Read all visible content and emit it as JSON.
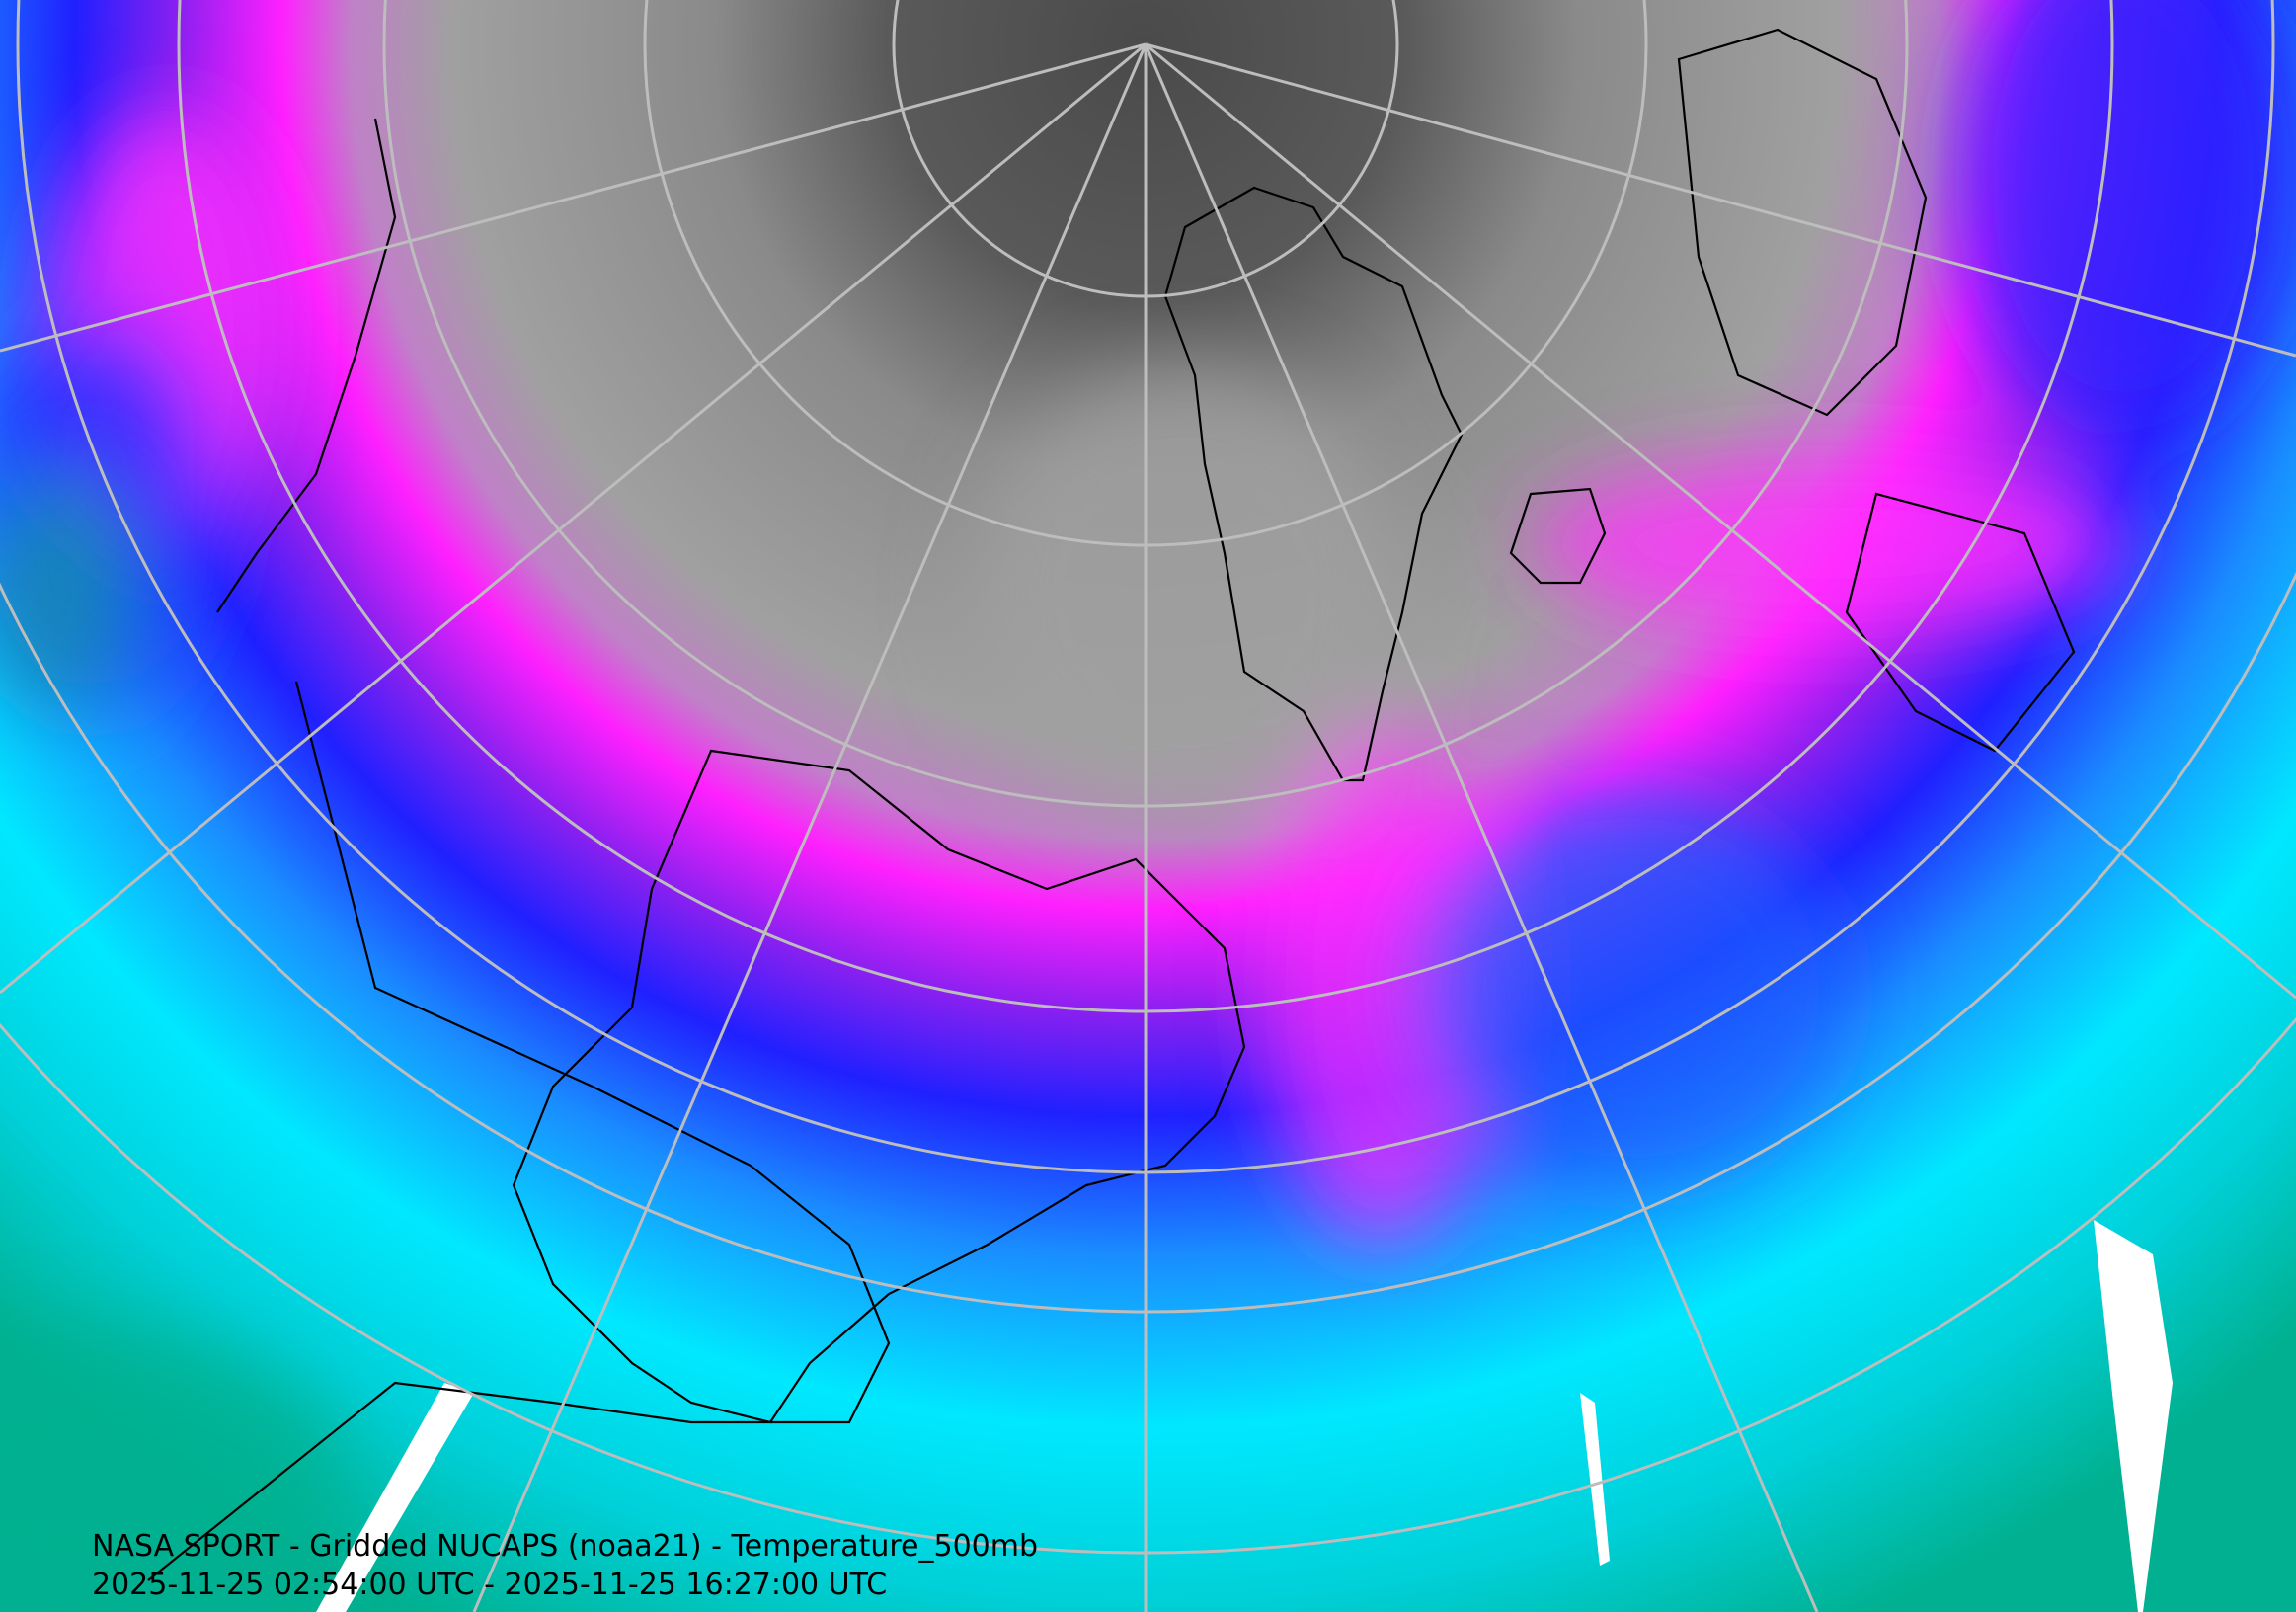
{
  "title": "NASA SPORT - Gridded NUCAPS (noaa21) - Temperature_500mb",
  "subtitle": "2025-11-25 02:54:00 UTC - 2025-11-25 16:27:00 UTC"
}
